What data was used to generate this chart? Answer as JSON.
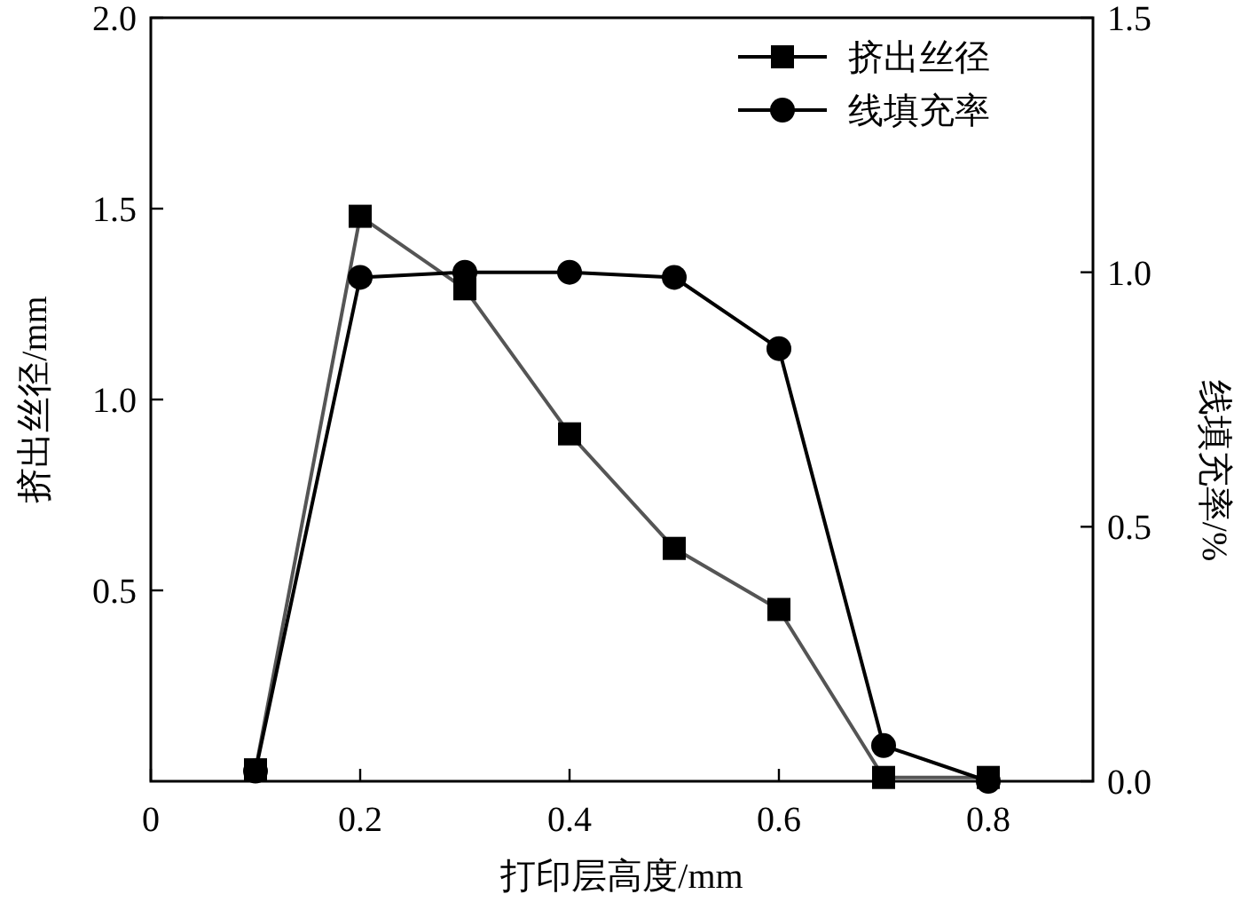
{
  "chart_data": {
    "type": "line",
    "xlabel": "打印层高度/mm",
    "ylabel": "挤出丝径/mm",
    "y2label": "线填充率/%",
    "xlim": [
      0,
      0.9
    ],
    "xticks": [
      0,
      0.2,
      0.4,
      0.6,
      0.8
    ],
    "ylim": [
      0,
      2.0
    ],
    "yticks": [
      {
        "value": 0.5,
        "label": "0.5"
      },
      {
        "value": 1.0,
        "label": "1.0"
      },
      {
        "value": 1.5,
        "label": "1.5"
      },
      {
        "value": 2.0,
        "label": "2.0"
      }
    ],
    "y2lim": [
      0,
      1.5
    ],
    "y2ticks": [
      {
        "value": 0,
        "label": "0.0"
      },
      {
        "value": 0.5,
        "label": "0.5"
      },
      {
        "value": 1.0,
        "label": "1.0"
      },
      {
        "value": 1.5,
        "label": "1.5"
      }
    ],
    "legend": "top right",
    "grid": false,
    "series": [
      {
        "name": "挤出丝径",
        "color": "#555555",
        "marker": "square",
        "x": [
          0.1,
          0.2,
          0.3,
          0.4,
          0.5,
          0.6,
          0.7,
          0.8
        ],
        "values": [
          0.03,
          1.48,
          1.29,
          0.91,
          0.61,
          0.45,
          0.01,
          0.01
        ]
      },
      {
        "name": "线填充率",
        "color": "#000000",
        "marker": "circle",
        "axis": "y2",
        "x": [
          0.1,
          0.2,
          0.3,
          0.4,
          0.5,
          0.6,
          0.7,
          0.8
        ],
        "values": [
          0.02,
          0.99,
          1.0,
          1.0,
          0.99,
          0.85,
          0.07,
          0.0
        ]
      }
    ]
  }
}
